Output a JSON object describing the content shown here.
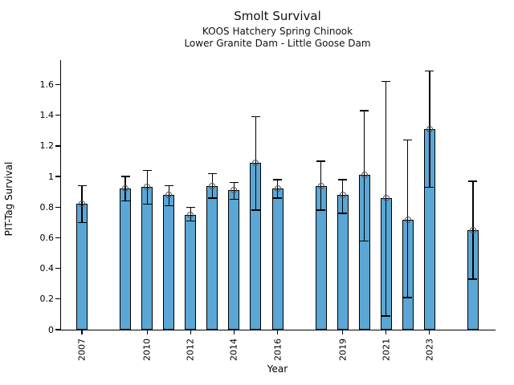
{
  "chart_data": {
    "type": "bar",
    "title": "Smolt Survival",
    "subtitle1": "KOOS Hatchery Spring Chinook",
    "subtitle2": "Lower Granite Dam - Little Goose Dam",
    "xlabel": "Year",
    "ylabel": "PIT-Tag Survival",
    "x_range": [
      2006,
      2026
    ],
    "y_range": [
      0,
      1.76
    ],
    "y_ticks": [
      0,
      0.2,
      0.4,
      0.6,
      0.8,
      1,
      1.2,
      1.4,
      1.6
    ],
    "y_tick_labels": [
      "0",
      "0.2",
      "0.4",
      "0.6",
      "0.8",
      "1",
      "1.2",
      "1.4",
      "1.6"
    ],
    "x_ticks": [
      2007,
      2010,
      2012,
      2014,
      2016,
      2019,
      2021,
      2023
    ],
    "legend": "none",
    "grid": false,
    "bar_color": "#5AA7D6",
    "bar_edge_color": "#000000",
    "error_bar_color": "#000000",
    "marker": "open-circle",
    "points": [
      {
        "year": 2007,
        "value": 0.82,
        "ci_low": 0.7,
        "ci_high": 0.94
      },
      {
        "year": 2009,
        "value": 0.92,
        "ci_low": 0.84,
        "ci_high": 1.0
      },
      {
        "year": 2010,
        "value": 0.93,
        "ci_low": 0.82,
        "ci_high": 1.04
      },
      {
        "year": 2011,
        "value": 0.88,
        "ci_low": 0.81,
        "ci_high": 0.94
      },
      {
        "year": 2012,
        "value": 0.75,
        "ci_low": 0.71,
        "ci_high": 0.8
      },
      {
        "year": 2013,
        "value": 0.94,
        "ci_low": 0.86,
        "ci_high": 1.02
      },
      {
        "year": 2014,
        "value": 0.91,
        "ci_low": 0.85,
        "ci_high": 0.96
      },
      {
        "year": 2015,
        "value": 1.09,
        "ci_low": 0.78,
        "ci_high": 1.39
      },
      {
        "year": 2016,
        "value": 0.92,
        "ci_low": 0.86,
        "ci_high": 0.98
      },
      {
        "year": 2018,
        "value": 0.94,
        "ci_low": 0.78,
        "ci_high": 1.1
      },
      {
        "year": 2019,
        "value": 0.88,
        "ci_low": 0.76,
        "ci_high": 0.98
      },
      {
        "year": 2020,
        "value": 1.01,
        "ci_low": 0.58,
        "ci_high": 1.43
      },
      {
        "year": 2021,
        "value": 0.86,
        "ci_low": 0.09,
        "ci_high": 1.62
      },
      {
        "year": 2022,
        "value": 0.72,
        "ci_low": 0.21,
        "ci_high": 1.24
      },
      {
        "year": 2023,
        "value": 1.31,
        "ci_low": 0.93,
        "ci_high": 1.69
      },
      {
        "year": 2025,
        "value": 0.65,
        "ci_low": 0.33,
        "ci_high": 0.97
      }
    ]
  }
}
